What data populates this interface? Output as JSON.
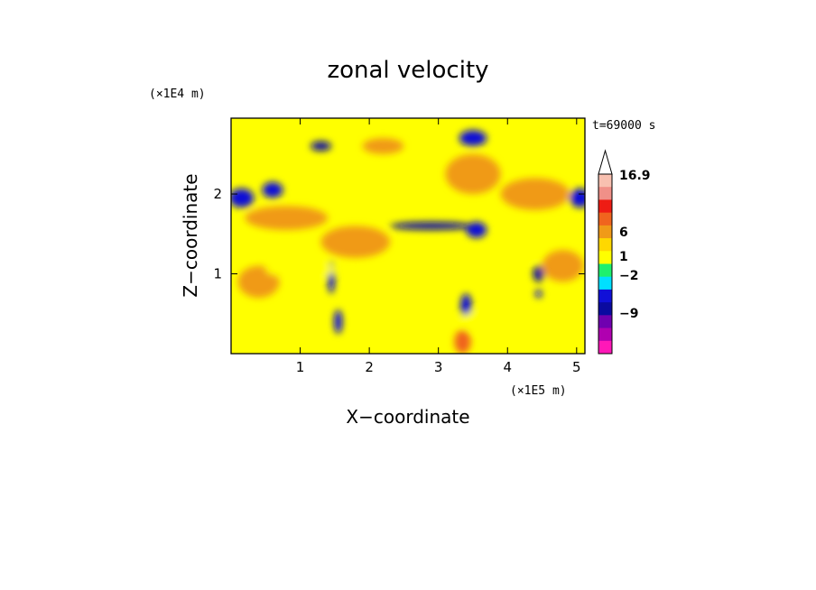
{
  "chart_data": {
    "type": "heatmap",
    "title": "zonal velocity",
    "xlabel": "X−coordinate",
    "ylabel": "Z−coordinate",
    "x_multiplier": "(×1E5 m)",
    "y_multiplier": "(×1E4 m)",
    "time_label": "t=69000 s",
    "xlim": [
      0,
      5.12
    ],
    "ylim": [
      0,
      2.95
    ],
    "x_ticks": [
      {
        "value": 1,
        "label": "1"
      },
      {
        "value": 2,
        "label": "2"
      },
      {
        "value": 3,
        "label": "3"
      },
      {
        "value": 4,
        "label": "4"
      },
      {
        "value": 5,
        "label": "5"
      }
    ],
    "y_ticks": [
      {
        "value": 1,
        "label": "1"
      },
      {
        "value": 2,
        "label": "2"
      }
    ],
    "colorbar": {
      "labels": [
        {
          "value": 16.9,
          "label": "16.9"
        },
        {
          "value": 6,
          "label": "6"
        },
        {
          "value": 1,
          "label": "1"
        },
        {
          "value": -2,
          "label": "−2"
        },
        {
          "value": -9,
          "label": "−9"
        }
      ],
      "levels": [
        {
          "color": "#f8c0b0"
        },
        {
          "color": "#f09088"
        },
        {
          "color": "#ee1c14"
        },
        {
          "color": "#f0641e"
        },
        {
          "color": "#f09a18"
        },
        {
          "color": "#ffd800"
        },
        {
          "color": "#ffff00"
        },
        {
          "color": "#1ef06e"
        },
        {
          "color": "#00e0ff"
        },
        {
          "color": "#1010d8"
        },
        {
          "color": "#0a0aa0"
        },
        {
          "color": "#7000b0"
        },
        {
          "color": "#b000b0"
        },
        {
          "color": "#ff18b8"
        }
      ],
      "extend": "max"
    },
    "blobs": [
      {
        "x": 0.15,
        "z": 1.95,
        "rx": 0.18,
        "rz": 0.12,
        "v": -6
      },
      {
        "x": 0.6,
        "z": 2.05,
        "rx": 0.15,
        "rz": 0.1,
        "v": -6
      },
      {
        "x": 3.5,
        "z": 2.7,
        "rx": 0.2,
        "rz": 0.1,
        "v": -5
      },
      {
        "x": 5.05,
        "z": 1.95,
        "rx": 0.15,
        "rz": 0.12,
        "v": -5
      },
      {
        "x": 3.55,
        "z": 1.55,
        "rx": 0.15,
        "rz": 0.1,
        "v": -5
      },
      {
        "x": 1.45,
        "z": 0.95,
        "rx": 0.05,
        "rz": 0.2,
        "v": -6
      },
      {
        "x": 1.55,
        "z": 0.4,
        "rx": 0.06,
        "rz": 0.15,
        "v": -5
      },
      {
        "x": 3.4,
        "z": 0.6,
        "rx": 0.08,
        "rz": 0.15,
        "v": -5
      },
      {
        "x": 4.45,
        "z": 0.75,
        "rx": 0.05,
        "rz": 0.05,
        "v": -5
      },
      {
        "x": 4.45,
        "z": 1.0,
        "rx": 0.08,
        "rz": 0.1,
        "v": -4
      },
      {
        "x": 2.9,
        "z": 1.6,
        "rx": 0.6,
        "rz": 0.05,
        "v": -3
      },
      {
        "x": 1.3,
        "z": 2.6,
        "rx": 0.15,
        "rz": 0.06,
        "v": -3
      },
      {
        "x": 1.8,
        "z": 1.4,
        "rx": 0.5,
        "rz": 0.2,
        "v": 3
      },
      {
        "x": 0.8,
        "z": 1.7,
        "rx": 0.6,
        "rz": 0.15,
        "v": 3
      },
      {
        "x": 3.5,
        "z": 2.25,
        "rx": 0.4,
        "rz": 0.25,
        "v": 3
      },
      {
        "x": 4.4,
        "z": 2.0,
        "rx": 0.5,
        "rz": 0.2,
        "v": 3
      },
      {
        "x": 4.8,
        "z": 1.1,
        "rx": 0.3,
        "rz": 0.2,
        "v": 4
      },
      {
        "x": 0.4,
        "z": 0.9,
        "rx": 0.3,
        "rz": 0.2,
        "v": 4
      },
      {
        "x": 3.35,
        "z": 0.15,
        "rx": 0.12,
        "rz": 0.15,
        "v": 6
      },
      {
        "x": 2.2,
        "z": 2.6,
        "rx": 0.3,
        "rz": 0.1,
        "v": 3
      },
      {
        "x": 0.2,
        "z": 1.35,
        "rx": 0.3,
        "rz": 0.1,
        "v": 0
      },
      {
        "x": 1.0,
        "z": 1.05,
        "rx": 0.5,
        "rz": 0.1,
        "v": 0
      },
      {
        "x": 3.8,
        "z": 0.4,
        "rx": 0.5,
        "rz": 0.15,
        "v": 0
      },
      {
        "x": 2.6,
        "z": 2.3,
        "rx": 0.2,
        "rz": 0.15,
        "v": 0
      },
      {
        "x": 4.2,
        "z": 1.3,
        "rx": 0.3,
        "rz": 0.12,
        "v": 0
      }
    ]
  }
}
